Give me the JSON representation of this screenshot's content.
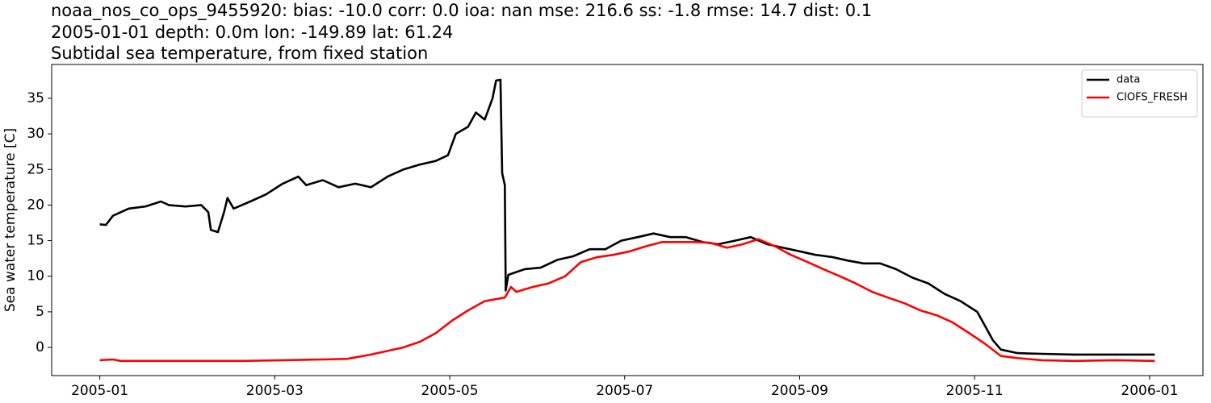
{
  "chart_data": {
    "type": "line",
    "title": "noaa_nos_co_ops_9455920: bias: -10.0  corr: 0.0  ioa: nan  mse: 216.6  ss: -1.8  rmse: 14.7  dist: 0.1",
    "subtitle": [
      "2005-01-01 depth: 0.0m lon: -149.89 lat: 61.24",
      "Subtidal sea temperature, from fixed station"
    ],
    "ylabel": "Sea water temperature [C]",
    "xlim": [
      -0.55,
      12.61
    ],
    "ylim": [
      -3.96,
      39.75
    ],
    "xticks": [
      {
        "value": 0,
        "label": "2005-01"
      },
      {
        "value": 2,
        "label": "2005-03"
      },
      {
        "value": 4,
        "label": "2005-05"
      },
      {
        "value": 6,
        "label": "2005-07"
      },
      {
        "value": 8,
        "label": "2005-09"
      },
      {
        "value": 10,
        "label": "2005-11"
      },
      {
        "value": 12,
        "label": "2006-01"
      }
    ],
    "yticks": [
      0,
      5,
      10,
      15,
      20,
      25,
      30,
      35
    ],
    "legend": "upper right",
    "grid": false,
    "series": [
      {
        "name": "data",
        "color": "#000000",
        "x": [
          0,
          0.07,
          0.15,
          0.33,
          0.52,
          0.7,
          0.79,
          0.98,
          1.16,
          1.24,
          1.27,
          1.35,
          1.42,
          1.46,
          1.53,
          1.72,
          1.9,
          2.09,
          2.27,
          2.36,
          2.55,
          2.73,
          2.92,
          3.1,
          3.29,
          3.47,
          3.66,
          3.84,
          3.98,
          4.07,
          4.21,
          4.3,
          4.4,
          4.49,
          4.53,
          4.58,
          4.6,
          4.63,
          4.64,
          4.67,
          4.86,
          5.04,
          5.23,
          5.41,
          5.6,
          5.78,
          5.96,
          6.15,
          6.33,
          6.52,
          6.7,
          6.89,
          7.07,
          7.26,
          7.44,
          7.63,
          7.81,
          8.0,
          8.18,
          8.37,
          8.55,
          8.73,
          8.92,
          9.1,
          9.29,
          9.47,
          9.66,
          9.84,
          10.03,
          10.12,
          10.21,
          10.3,
          10.49,
          10.77,
          11.14,
          11.6,
          12.06
        ],
        "values": [
          17.3,
          17.2,
          18.5,
          19.5,
          19.8,
          20.5,
          20.0,
          19.8,
          20.0,
          19.0,
          16.5,
          16.2,
          19.0,
          21.0,
          19.5,
          20.5,
          21.5,
          23.0,
          24.0,
          22.8,
          23.5,
          22.5,
          23.0,
          22.5,
          24.0,
          25.0,
          25.7,
          26.2,
          27.0,
          30.0,
          31.0,
          33.0,
          32.0,
          35.0,
          37.5,
          37.6,
          24.5,
          22.8,
          8.0,
          10.2,
          11.0,
          11.2,
          12.3,
          12.8,
          13.8,
          13.8,
          15.0,
          15.5,
          16.0,
          15.5,
          15.5,
          14.8,
          14.5,
          15.0,
          15.5,
          14.5,
          14.0,
          13.5,
          13.0,
          12.7,
          12.2,
          11.8,
          11.8,
          11.0,
          9.8,
          9.0,
          7.5,
          6.5,
          5.0,
          3.0,
          1.0,
          -0.3,
          -0.8,
          -0.9,
          -1.0,
          -1.0,
          -1.0
        ]
      },
      {
        "name": "CIOFS_FRESH",
        "color": "#ff0000",
        "x": [
          0,
          0.15,
          0.24,
          0.7,
          1.16,
          1.63,
          2.09,
          2.55,
          2.83,
          3.1,
          3.29,
          3.47,
          3.66,
          3.84,
          4.03,
          4.21,
          4.4,
          4.63,
          4.7,
          4.76,
          4.95,
          5.13,
          5.32,
          5.5,
          5.69,
          5.87,
          6.06,
          6.24,
          6.43,
          6.61,
          6.8,
          6.98,
          7.17,
          7.35,
          7.53,
          7.72,
          7.9,
          8.09,
          8.27,
          8.46,
          8.64,
          8.83,
          9.01,
          9.2,
          9.38,
          9.57,
          9.75,
          9.94,
          10.12,
          10.3,
          10.49,
          10.77,
          11.14,
          11.6,
          12.06
        ],
        "values": [
          -1.8,
          -1.7,
          -1.9,
          -1.9,
          -1.9,
          -1.9,
          -1.8,
          -1.7,
          -1.6,
          -1.0,
          -0.5,
          0.0,
          0.8,
          2.0,
          3.8,
          5.2,
          6.5,
          7.0,
          8.5,
          7.8,
          8.5,
          9.0,
          10.0,
          12.0,
          12.7,
          13.0,
          13.5,
          14.2,
          14.8,
          14.8,
          14.8,
          14.7,
          14.0,
          14.5,
          15.2,
          14.2,
          13.0,
          12.0,
          11.0,
          10.0,
          9.0,
          7.8,
          7.0,
          6.2,
          5.2,
          4.5,
          3.5,
          2.0,
          0.5,
          -1.2,
          -1.5,
          -1.8,
          -1.9,
          -1.8,
          -1.9
        ]
      }
    ]
  }
}
